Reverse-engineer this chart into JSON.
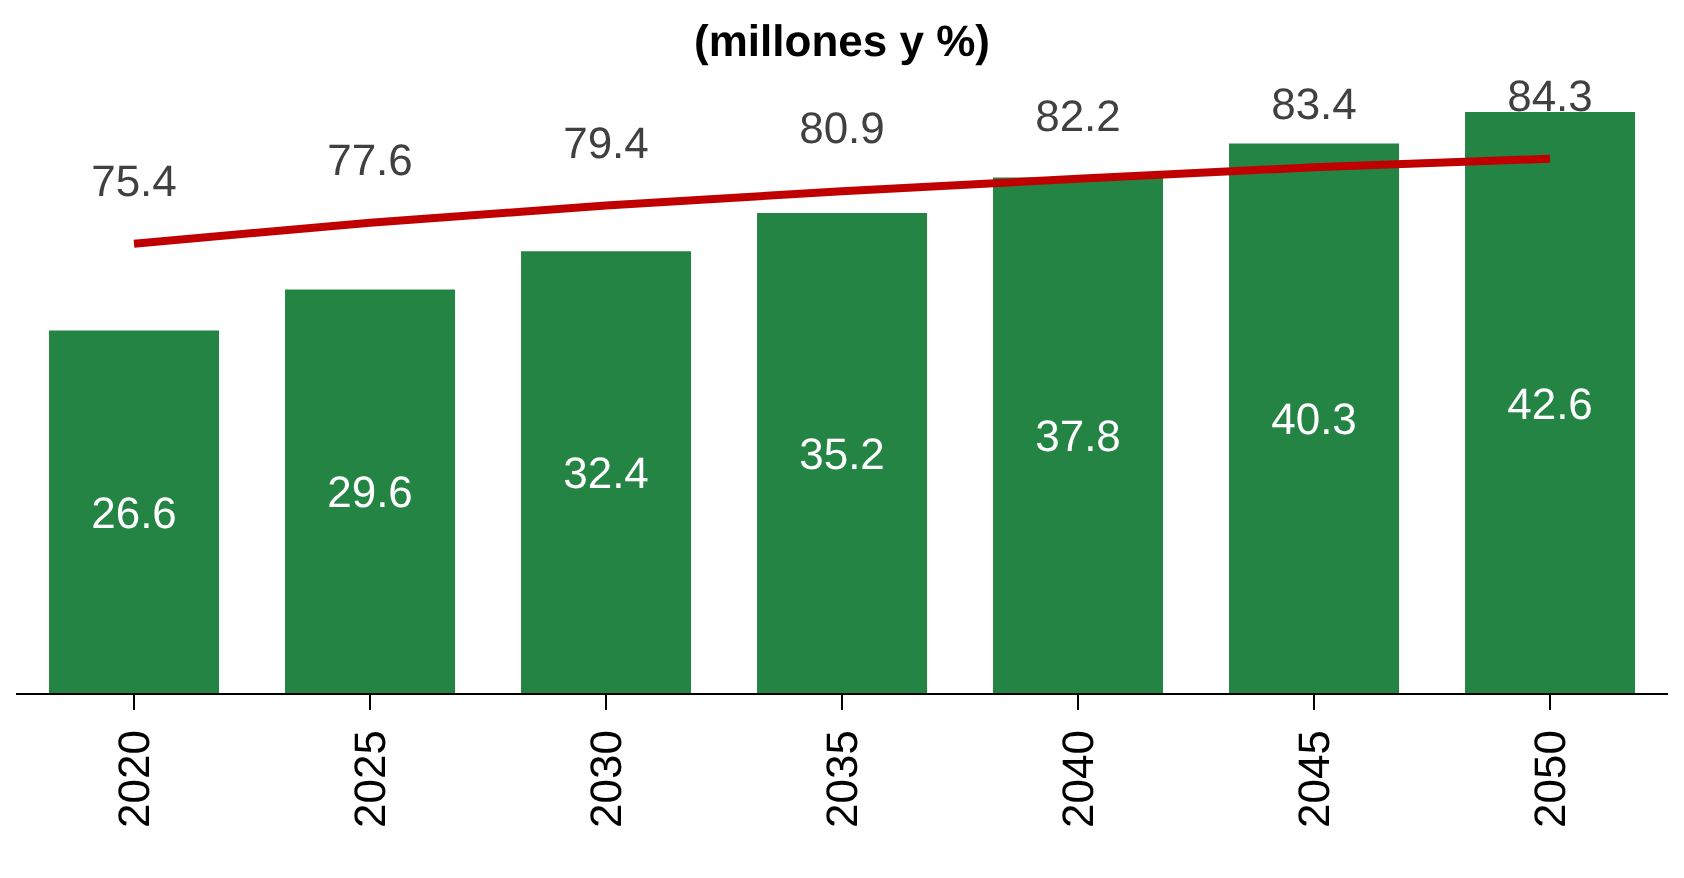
{
  "chart_data": {
    "type": "bar",
    "title": "(millones y %)",
    "categories": [
      "2020",
      "2025",
      "2030",
      "2035",
      "2040",
      "2045",
      "2050"
    ],
    "series": [
      {
        "color": "#238443",
        "values": [
          26.6,
          29.6,
          32.4,
          35.2,
          37.8,
          40.3,
          42.6
        ]
      },
      {
        "type": "line",
        "axis": "y2",
        "color": "#c00000",
        "values": [
          75.4,
          77.6,
          79.4,
          80.9,
          82.2,
          83.4,
          84.3
        ]
      }
    ],
    "data_labels": true,
    "marker": "none",
    "line_style": "solid"
  }
}
